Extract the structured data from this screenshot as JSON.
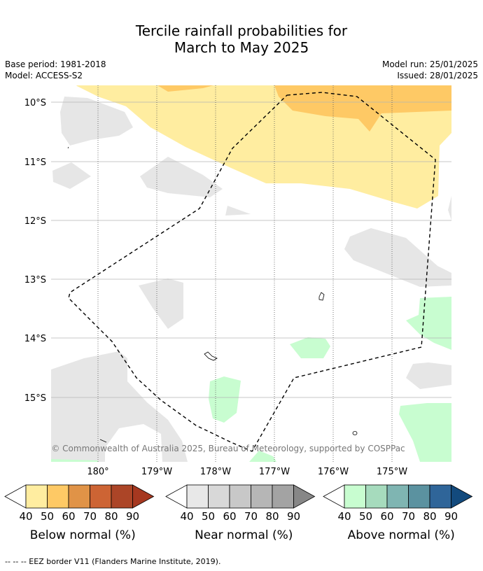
{
  "title_line1": "Tercile rainfall probabilities for",
  "title_line2": "March to May 2025",
  "base_period": "Base period: 1981-2018",
  "model": "Model: ACCESS-S2",
  "model_run": "Model run: 25/01/2025",
  "issued": "Issued: 28/01/2025",
  "map": {
    "lat_labels": [
      "10°S",
      "11°S",
      "12°S",
      "13°S",
      "14°S",
      "15°S"
    ],
    "lon_labels": [
      "180°",
      "179°W",
      "178°W",
      "177°W",
      "176°W",
      "175°W"
    ],
    "copyright": "© Commonwealth of Australia 2025, Bureau of Meteorology, supported by COSPPac"
  },
  "legends": [
    {
      "name": "Below normal (%)",
      "ticks": [
        "40",
        "50",
        "60",
        "70",
        "80",
        "90"
      ],
      "colors": [
        "#fff",
        "#ffeda0",
        "#fec965",
        "#e09347",
        "#cd6434",
        "#ac4527",
        "#a63820"
      ]
    },
    {
      "name": "Near normal (%)",
      "ticks": [
        "40",
        "50",
        "60",
        "70",
        "80",
        "90"
      ],
      "colors": [
        "#fff",
        "#e8e8e8",
        "#d8d8d8",
        "#c8c8c8",
        "#b6b6b6",
        "#a3a3a3",
        "#878787"
      ]
    },
    {
      "name": "Above normal (%)",
      "ticks": [
        "40",
        "50",
        "60",
        "70",
        "80",
        "90"
      ],
      "colors": [
        "#fff",
        "#c8fdd0",
        "#a6dbbd",
        "#7fb5b2",
        "#5b92a0",
        "#2f6599",
        "#134a7d"
      ]
    }
  ],
  "footer": "--  --  -- EEZ border V11 (Flanders Marine Institute, 2019)."
}
